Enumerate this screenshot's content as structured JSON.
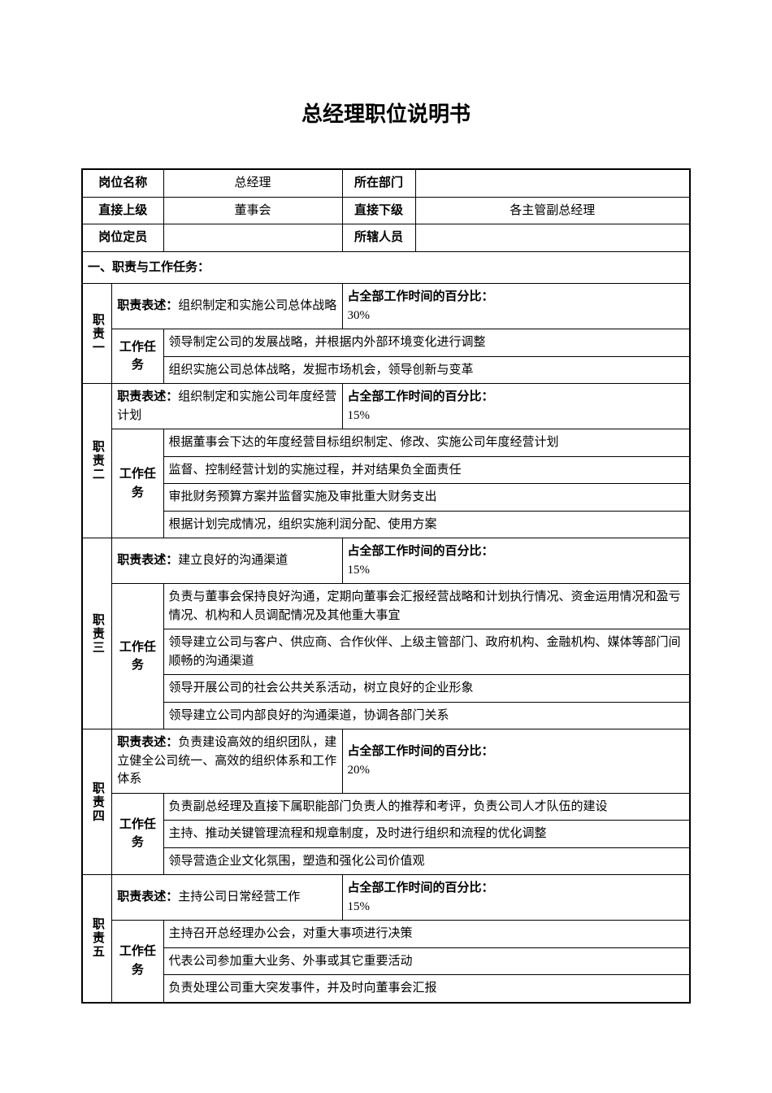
{
  "title": "总经理职位说明书",
  "header": {
    "row1": {
      "label1": "岗位名称",
      "value1": "总经理",
      "label2": "所在部门",
      "value2": ""
    },
    "row2": {
      "label1": "直接上级",
      "value1": "董事会",
      "label2": "直接下级",
      "value2": "各主管副总经理"
    },
    "row3": {
      "label1": "岗位定员",
      "value1": "",
      "label2": "所辖人员",
      "value2": ""
    }
  },
  "section_header": "一、职责与工作任务：",
  "desc_prefix": "职责表述：",
  "task_label": "工作任务",
  "percent_prefix": "占全部工作时间的百分比：",
  "duties": [
    {
      "label": "职责一",
      "desc": "组织制定和实施公司总体战略",
      "percent": "30%",
      "tasks": [
        "领导制定公司的发展战略，并根据内外部环境变化进行调整",
        "组织实施公司总体战略，发掘市场机会，领导创新与变革"
      ]
    },
    {
      "label": "职责二",
      "desc": "组织制定和实施公司年度经营计划",
      "percent": "15%",
      "tasks": [
        "根据董事会下达的年度经营目标组织制定、修改、实施公司年度经营计划",
        "监督、控制经营计划的实施过程，并对结果负全面责任",
        "审批财务预算方案并监督实施及审批重大财务支出",
        "根据计划完成情况，组织实施利润分配、使用方案"
      ]
    },
    {
      "label": "职责三",
      "desc": "建立良好的沟通渠道",
      "percent": "15%",
      "tasks": [
        "负责与董事会保持良好沟通，定期向董事会汇报经营战略和计划执行情况、资金运用情况和盈亏情况、机构和人员调配情况及其他重大事宜",
        "领导建立公司与客户、供应商、合作伙伴、上级主管部门、政府机构、金融机构、媒体等部门间顺畅的沟通渠道",
        "领导开展公司的社会公共关系活动，树立良好的企业形象",
        "领导建立公司内部良好的沟通渠道，协调各部门关系"
      ]
    },
    {
      "label": "职责四",
      "desc": "负责建设高效的组织团队，建立健全公司统一、高效的组织体系和工作体系",
      "percent": "20%",
      "tasks": [
        "负责副总经理及直接下属职能部门负责人的推荐和考评，负责公司人才队伍的建设",
        "主持、推动关键管理流程和规章制度，及时进行组织和流程的优化调整",
        "领导营造企业文化氛围，塑造和强化公司价值观"
      ]
    },
    {
      "label": "职责五",
      "desc": "主持公司日常经营工作",
      "percent": "15%",
      "tasks": [
        "主持召开总经理办公会，对重大事项进行决策",
        "代表公司参加重大业务、外事或其它重要活动",
        "负责处理公司重大突发事件，并及时向董事会汇报"
      ]
    }
  ]
}
